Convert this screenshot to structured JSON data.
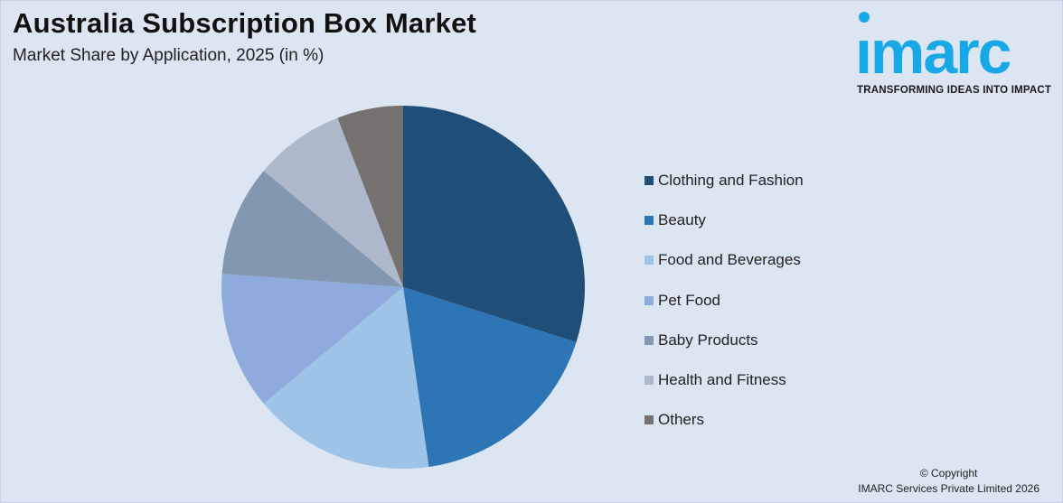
{
  "header": {
    "title": "Australia Subscription Box Market",
    "subtitle": "Market Share by Application, 2025 (in %)"
  },
  "logo": {
    "word": "ımarc",
    "tagline": "TRANSFORMING IDEAS INTO IMPACT",
    "color": "#19a8e6"
  },
  "chart_data": {
    "type": "pie",
    "title": "Australia Subscription Box Market",
    "subtitle": "Market Share by Application, 2025 (in %)",
    "start_angle_deg": 0,
    "direction": "clockwise",
    "legend_position": "right",
    "slices": [
      {
        "label": "Clothing and Fashion",
        "value": 30.5,
        "color": "#1f4e79"
      },
      {
        "label": "Beauty",
        "value": 18.2,
        "color": "#2e75b6"
      },
      {
        "label": "Food and Beverages",
        "value": 16.5,
        "color": "#9dc3e6"
      },
      {
        "label": "Pet Food",
        "value": 12.5,
        "color": "#8faadc"
      },
      {
        "label": "Baby Products",
        "value": 10.1,
        "color": "#8497b0"
      },
      {
        "label": "Health and Fitness",
        "value": 8.2,
        "color": "#adb9ca"
      },
      {
        "label": "Others",
        "value": 6.0,
        "color": "#767171"
      }
    ]
  },
  "footer": {
    "copyright_line1": "© Copyright",
    "copyright_line2": "IMARC Services Private Limited 2026"
  }
}
